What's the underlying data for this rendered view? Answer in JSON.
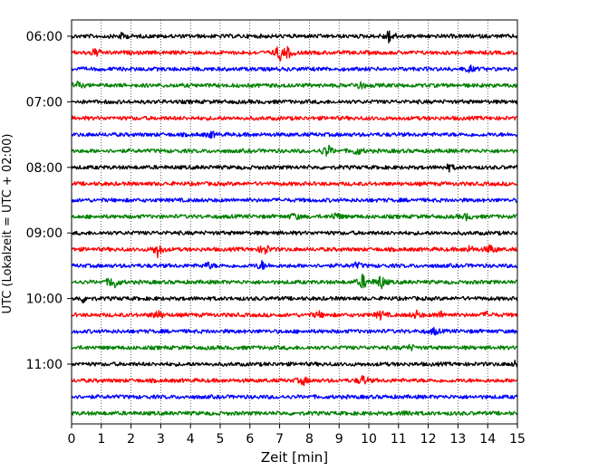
{
  "chart_data": {
    "type": "line",
    "title": "",
    "xlabel": "Zeit  [min]",
    "ylabel": "UTC (Lokalzeit = UTC + 02:00)",
    "xlim": [
      0,
      15
    ],
    "x_ticks": [
      "0",
      "1",
      "2",
      "3",
      "4",
      "5",
      "6",
      "7",
      "8",
      "9",
      "10",
      "11",
      "12",
      "13",
      "14",
      "15"
    ],
    "y_tick_labels": [
      "06:00",
      "07:00",
      "08:00",
      "09:00",
      "10:00",
      "11:00"
    ],
    "grid_x": true,
    "trace_interval_min": 15,
    "trace_colors": [
      "#000000",
      "#ff0000",
      "#0000ff",
      "#008000"
    ],
    "traces": [
      {
        "start": "06:00",
        "color": "#000000",
        "events": [
          [
            1.7,
            0.35
          ],
          [
            10.7,
            0.9
          ]
        ]
      },
      {
        "start": "06:15",
        "color": "#ff0000",
        "events": [
          [
            0.8,
            0.5
          ],
          [
            7.0,
            0.95
          ],
          [
            7.3,
            0.6
          ]
        ]
      },
      {
        "start": "06:30",
        "color": "#0000ff",
        "events": [
          [
            13.4,
            0.35
          ]
        ]
      },
      {
        "start": "06:45",
        "color": "#008000",
        "events": [
          [
            0.2,
            0.35
          ],
          [
            9.7,
            0.5
          ]
        ]
      },
      {
        "start": "07:00",
        "color": "#000000",
        "events": []
      },
      {
        "start": "07:15",
        "color": "#ff0000",
        "events": []
      },
      {
        "start": "07:30",
        "color": "#0000ff",
        "events": [
          [
            4.7,
            0.35
          ]
        ]
      },
      {
        "start": "07:45",
        "color": "#008000",
        "events": [
          [
            8.6,
            0.8
          ],
          [
            9.6,
            0.5
          ]
        ]
      },
      {
        "start": "08:00",
        "color": "#000000",
        "events": [
          [
            12.7,
            0.35
          ]
        ]
      },
      {
        "start": "08:15",
        "color": "#ff0000",
        "events": []
      },
      {
        "start": "08:30",
        "color": "#0000ff",
        "events": []
      },
      {
        "start": "08:45",
        "color": "#008000",
        "events": [
          [
            7.5,
            0.4
          ],
          [
            8.9,
            0.5
          ],
          [
            13.3,
            0.35
          ]
        ]
      },
      {
        "start": "09:00",
        "color": "#000000",
        "events": []
      },
      {
        "start": "09:15",
        "color": "#ff0000",
        "events": [
          [
            2.9,
            0.9
          ],
          [
            6.5,
            0.7
          ],
          [
            13.4,
            0.4
          ],
          [
            14.1,
            0.6
          ]
        ]
      },
      {
        "start": "09:30",
        "color": "#0000ff",
        "events": [
          [
            4.6,
            0.35
          ],
          [
            6.4,
            0.5
          ],
          [
            9.6,
            0.35
          ]
        ]
      },
      {
        "start": "09:45",
        "color": "#008000",
        "events": [
          [
            1.4,
            1.0
          ],
          [
            9.8,
            0.9
          ],
          [
            10.4,
            0.9
          ]
        ]
      },
      {
        "start": "10:00",
        "color": "#000000",
        "events": [
          [
            0.4,
            0.4
          ]
        ]
      },
      {
        "start": "10:15",
        "color": "#ff0000",
        "events": [
          [
            2.9,
            0.6
          ],
          [
            8.3,
            0.4
          ],
          [
            10.4,
            0.5
          ],
          [
            11.6,
            0.45
          ],
          [
            12.4,
            0.4
          ],
          [
            14.0,
            0.35
          ]
        ]
      },
      {
        "start": "10:30",
        "color": "#0000ff",
        "events": [
          [
            12.2,
            0.4
          ]
        ]
      },
      {
        "start": "10:45",
        "color": "#008000",
        "events": [
          [
            11.4,
            0.3
          ]
        ]
      },
      {
        "start": "11:00",
        "color": "#000000",
        "events": [
          [
            15.0,
            0.5
          ]
        ]
      },
      {
        "start": "11:15",
        "color": "#ff0000",
        "events": [
          [
            7.8,
            0.5
          ],
          [
            9.8,
            0.6
          ]
        ]
      },
      {
        "start": "11:30",
        "color": "#0000ff",
        "events": []
      },
      {
        "start": "11:45",
        "color": "#008000",
        "events": [
          [
            11.3,
            0.35
          ]
        ]
      }
    ]
  }
}
